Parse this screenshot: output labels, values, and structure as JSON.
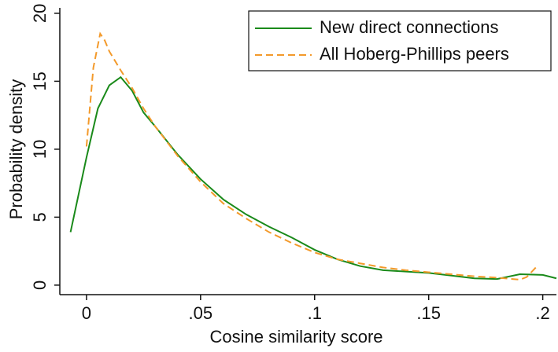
{
  "chart_data": {
    "type": "line",
    "xlabel": "Cosine similarity score",
    "ylabel": "Probability density",
    "xlim": [
      -0.0117,
      0.206
    ],
    "ylim": [
      -0.7,
      20.4
    ],
    "xticks": [
      0,
      {
        "value": 0.05,
        "label": ".05"
      },
      {
        "value": 0.1,
        "label": ".1"
      },
      {
        "value": 0.15,
        "label": ".15"
      },
      {
        "value": 0.2,
        "label": ".2"
      }
    ],
    "yticks": [
      0,
      5,
      10,
      15,
      20
    ],
    "grid": false,
    "legend": "upper right",
    "series": [
      {
        "name": "New direct connections",
        "color": "#1a8a1a",
        "dash": "solid",
        "x": [
          -0.007,
          0,
          0.005,
          0.01,
          0.015,
          0.02,
          0.025,
          0.03,
          0.04,
          0.05,
          0.06,
          0.07,
          0.08,
          0.09,
          0.1,
          0.11,
          0.12,
          0.13,
          0.14,
          0.15,
          0.16,
          0.17,
          0.18,
          0.19,
          0.2,
          0.206
        ],
        "values": [
          3.9,
          9.4,
          13.0,
          14.7,
          15.3,
          14.3,
          12.7,
          11.7,
          9.6,
          7.8,
          6.3,
          5.2,
          4.3,
          3.5,
          2.6,
          1.9,
          1.4,
          1.1,
          1.0,
          0.9,
          0.7,
          0.5,
          0.45,
          0.8,
          0.75,
          0.5
        ]
      },
      {
        "name": "All Hoberg-Phillips peers",
        "color": "#f39a2b",
        "dash": "dashed",
        "x": [
          0,
          0.003,
          0.006,
          0.008,
          0.01,
          0.015,
          0.02,
          0.025,
          0.03,
          0.04,
          0.05,
          0.06,
          0.07,
          0.08,
          0.09,
          0.1,
          0.11,
          0.12,
          0.13,
          0.14,
          0.15,
          0.16,
          0.17,
          0.18,
          0.19,
          0.193,
          0.197
        ],
        "values": [
          10.2,
          16.0,
          18.5,
          18.0,
          17.2,
          15.8,
          14.5,
          13.0,
          11.7,
          9.5,
          7.6,
          6.0,
          4.9,
          3.9,
          3.1,
          2.4,
          1.9,
          1.6,
          1.3,
          1.1,
          0.95,
          0.8,
          0.65,
          0.55,
          0.4,
          0.6,
          1.3
        ]
      }
    ]
  }
}
